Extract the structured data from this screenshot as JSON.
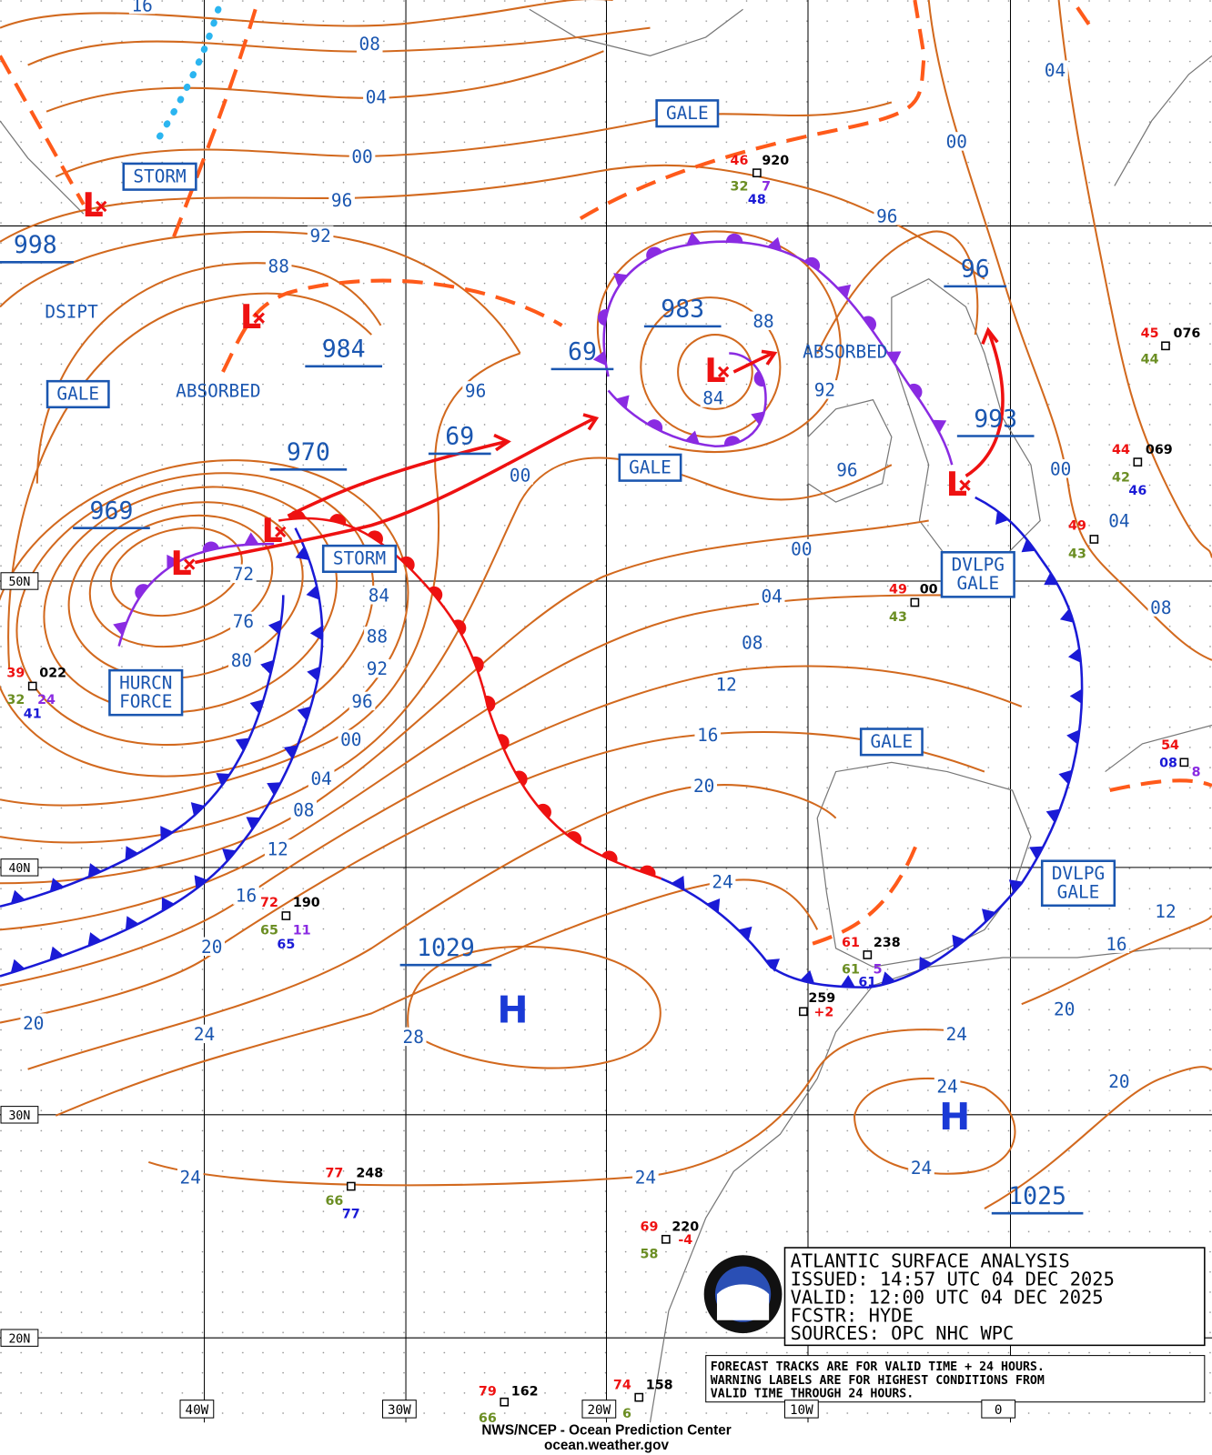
{
  "title_box": {
    "lines": [
      "ATLANTIC SURFACE ANALYSIS",
      "ISSUED:  14:57 UTC 04 DEC 2025",
      "VALID:  12:00 UTC 04 DEC 2025",
      "FCSTR:  HYDE",
      "SOURCES: OPC NHC WPC"
    ]
  },
  "note": {
    "lines": [
      "FORECAST TRACKS ARE FOR VALID TIME + 24 HOURS.",
      "WARNING LABELS ARE FOR HIGHEST CONDITIONS FROM",
      "VALID TIME THROUGH 24 HOURS."
    ]
  },
  "footer": {
    "lines": [
      "NWS/NCEP - Ocean Prediction Center",
      "ocean.weather.gov"
    ]
  },
  "lat_labels": [
    "50N",
    "40N",
    "30N",
    "20N"
  ],
  "lon_labels": [
    "40W",
    "30W",
    "20W",
    "10W",
    "0"
  ],
  "pressure_labels": [
    "998",
    "984",
    "970",
    "969",
    "69",
    "69",
    "983",
    "96",
    "993",
    "1029",
    "1025"
  ],
  "isobar_labels": [
    "16",
    "08",
    "04",
    "00",
    "96",
    "92",
    "88",
    "72",
    "76",
    "80",
    "84",
    "88",
    "92",
    "96",
    "00",
    "04",
    "08",
    "12",
    "16",
    "20",
    "20",
    "24",
    "28",
    "24",
    "24",
    "96",
    "00",
    "88",
    "84",
    "92",
    "96",
    "00",
    "04",
    "08",
    "12",
    "16",
    "20",
    "24",
    "24",
    "24",
    "24",
    "20",
    "20",
    "16",
    "12",
    "08",
    "04",
    "00",
    "00",
    "04",
    "96"
  ],
  "warnings": [
    [
      "GALE"
    ],
    [
      "STORM"
    ],
    [
      "GALE"
    ],
    [
      "STORM"
    ],
    [
      "HURCN",
      "FORCE"
    ],
    [
      "GALE"
    ],
    [
      "DVLPG",
      "GALE"
    ],
    [
      "GALE"
    ],
    [
      "DVLPG",
      "GALE"
    ]
  ],
  "status_labels": [
    "DSIPT",
    "ABSORBED",
    "ABSORBED"
  ],
  "highs": [
    "H",
    "H"
  ],
  "lows": [
    "L",
    "L",
    "L",
    "L",
    "L",
    "L"
  ],
  "stations": [
    [
      "46",
      "920",
      "32",
      "7",
      "48"
    ],
    [
      "45",
      "076",
      "44"
    ],
    [
      "44",
      "069",
      "42",
      "46"
    ],
    [
      "49",
      "43"
    ],
    [
      "49",
      "00",
      "43"
    ],
    [
      "39",
      "022",
      "32",
      "24",
      "41"
    ],
    [
      "72",
      "190",
      "65",
      "11",
      "65"
    ],
    [
      "61",
      "238",
      "61",
      "5",
      "61"
    ],
    [
      "259",
      "+2"
    ],
    [
      "77",
      "248",
      "66",
      "77"
    ],
    [
      "69",
      "220",
      "58",
      "-4"
    ],
    [
      "79",
      "162",
      "66"
    ],
    [
      "74",
      "158",
      "6"
    ],
    [
      "54",
      "08",
      "8"
    ]
  ]
}
